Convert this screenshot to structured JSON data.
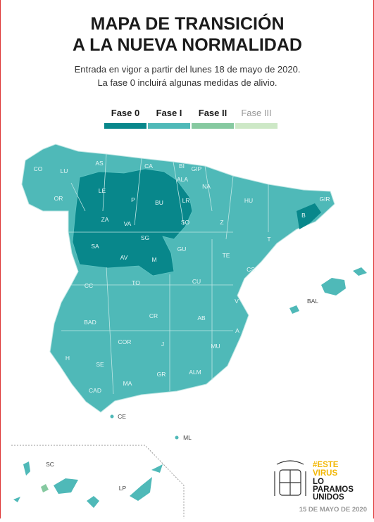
{
  "header": {
    "title": [
      "MAPA DE TRANSICIÓN",
      "A LA NUEVA NORMALIDAD"
    ],
    "subtitle": [
      "Entrada en vigor a partir del lunes 18 de mayo de 2020.",
      "La fase 0 incluirá algunas medidas de alivio."
    ]
  },
  "legend": [
    {
      "label": "Fase 0",
      "color": "#08878b"
    },
    {
      "label": "Fase I",
      "color": "#4fb9b8"
    },
    {
      "label": "Fase II",
      "color": "#86c9a0"
    },
    {
      "label": "Fase III",
      "color": "#cde8c6"
    }
  ],
  "map": {
    "labels": [
      "CO",
      "LU",
      "AS",
      "CA",
      "BI",
      "GIP",
      "OR",
      "LE",
      "P",
      "BU",
      "ALA",
      "NA",
      "LR",
      "HU",
      "GIR",
      "B",
      "ZA",
      "VA",
      "SO",
      "Z",
      "T",
      "SA",
      "SG",
      "AV",
      "M",
      "GU",
      "TE",
      "CS",
      "CC",
      "TO",
      "CU",
      "V",
      "BAL",
      "CR",
      "AB",
      "BAD",
      "A",
      "COR",
      "J",
      "MU",
      "H",
      "SE",
      "GR",
      "ALM",
      "CAD",
      "MA",
      "CE",
      "ML",
      "SC",
      "LP"
    ]
  },
  "footer": {
    "slogan": [
      "#ESTE",
      "VIRUS",
      "LO",
      "PARAMOS",
      "UNIDOS"
    ],
    "date": "15 DE MAYO DE 2020"
  }
}
